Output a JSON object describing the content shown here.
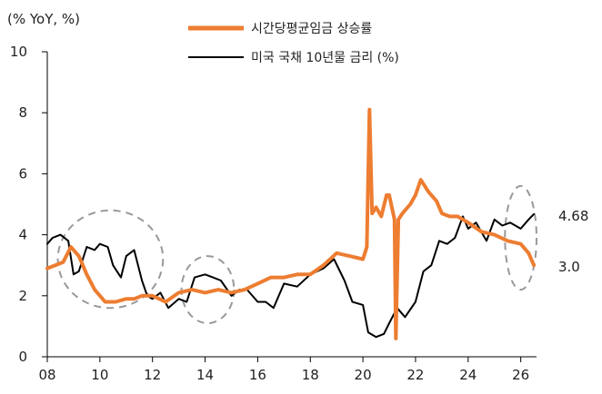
{
  "chart_data": {
    "type": "line",
    "unit_label": "(% YoY, %)",
    "xlim": [
      2008,
      2026.6
    ],
    "ylim": [
      0,
      10
    ],
    "x_ticks": [
      {
        "value": 2008,
        "label": "08"
      },
      {
        "value": 2010,
        "label": "10"
      },
      {
        "value": 2012,
        "label": "12"
      },
      {
        "value": 2014,
        "label": "14"
      },
      {
        "value": 2016,
        "label": "16"
      },
      {
        "value": 2018,
        "label": "18"
      },
      {
        "value": 2020,
        "label": "20"
      },
      {
        "value": 2022,
        "label": "22"
      },
      {
        "value": 2024,
        "label": "24"
      },
      {
        "value": 2026,
        "label": "26"
      }
    ],
    "y_ticks": [
      {
        "value": 0,
        "label": "0"
      },
      {
        "value": 2,
        "label": "2"
      },
      {
        "value": 4,
        "label": "4"
      },
      {
        "value": 6,
        "label": "6"
      },
      {
        "value": 8,
        "label": "8"
      },
      {
        "value": 10,
        "label": "10"
      }
    ],
    "legend_position": "top-center",
    "series": [
      {
        "name": "시간당평균임금 상승률",
        "color": "#ED7D31",
        "end_label": "3.0",
        "x": [
          2008.0,
          2008.3,
          2008.6,
          2008.9,
          2009.2,
          2009.5,
          2009.8,
          2010.2,
          2010.6,
          2011.0,
          2011.3,
          2011.6,
          2012.0,
          2012.5,
          2013.0,
          2013.5,
          2014.0,
          2014.5,
          2015.0,
          2015.5,
          2016.0,
          2016.5,
          2017.0,
          2017.5,
          2018.0,
          2018.5,
          2019.0,
          2019.5,
          2020.0,
          2020.15,
          2020.25,
          2020.35,
          2020.5,
          2020.7,
          2020.9,
          2021.0,
          2021.2,
          2021.25,
          2021.35,
          2021.5,
          2021.8,
          2022.0,
          2022.2,
          2022.5,
          2022.8,
          2023.0,
          2023.3,
          2023.6,
          2024.0,
          2024.5,
          2025.0,
          2025.5,
          2026.0,
          2026.3,
          2026.5
        ],
        "values": [
          2.9,
          3.0,
          3.1,
          3.6,
          3.3,
          2.7,
          2.2,
          1.8,
          1.8,
          1.9,
          1.9,
          2.0,
          2.0,
          1.8,
          2.1,
          2.2,
          2.1,
          2.2,
          2.1,
          2.2,
          2.4,
          2.6,
          2.6,
          2.7,
          2.7,
          3.0,
          3.4,
          3.3,
          3.2,
          3.6,
          8.1,
          4.7,
          4.9,
          4.6,
          5.3,
          5.3,
          4.5,
          0.6,
          4.5,
          4.7,
          5.0,
          5.3,
          5.8,
          5.4,
          5.1,
          4.7,
          4.6,
          4.6,
          4.4,
          4.1,
          4.0,
          3.8,
          3.7,
          3.4,
          3.0
        ]
      },
      {
        "name": "미국 국채 10년물 금리 (%)",
        "color": "#000000",
        "end_label": "4.68",
        "x": [
          2008.0,
          2008.2,
          2008.5,
          2008.8,
          2009.0,
          2009.2,
          2009.5,
          2009.8,
          2010.0,
          2010.3,
          2010.5,
          2010.8,
          2011.0,
          2011.3,
          2011.6,
          2011.8,
          2012.0,
          2012.3,
          2012.6,
          2013.0,
          2013.3,
          2013.6,
          2014.0,
          2014.3,
          2014.6,
          2015.0,
          2015.3,
          2015.6,
          2016.0,
          2016.3,
          2016.6,
          2017.0,
          2017.5,
          2018.0,
          2018.5,
          2018.9,
          2019.3,
          2019.6,
          2020.0,
          2020.2,
          2020.5,
          2020.8,
          2021.0,
          2021.3,
          2021.6,
          2022.0,
          2022.3,
          2022.6,
          2022.9,
          2023.2,
          2023.5,
          2023.8,
          2024.0,
          2024.3,
          2024.7,
          2025.0,
          2025.3,
          2025.6,
          2026.0,
          2026.3,
          2026.5
        ],
        "values": [
          3.7,
          3.9,
          4.0,
          3.8,
          2.7,
          2.8,
          3.6,
          3.5,
          3.7,
          3.6,
          3.0,
          2.6,
          3.3,
          3.5,
          2.5,
          2.0,
          1.9,
          2.1,
          1.6,
          1.9,
          1.8,
          2.6,
          2.7,
          2.6,
          2.5,
          2.0,
          2.2,
          2.2,
          1.8,
          1.8,
          1.6,
          2.4,
          2.3,
          2.7,
          2.9,
          3.2,
          2.5,
          1.8,
          1.7,
          0.8,
          0.65,
          0.75,
          1.1,
          1.6,
          1.3,
          1.8,
          2.8,
          3.0,
          3.8,
          3.7,
          3.9,
          4.6,
          4.2,
          4.4,
          3.8,
          4.5,
          4.3,
          4.4,
          4.2,
          4.5,
          4.68
        ]
      }
    ],
    "highlight_circles": [
      {
        "x_center": 2010.4,
        "y_center": 3.2,
        "x_radius": 2.0,
        "y_radius": 1.6
      },
      {
        "x_center": 2014.1,
        "y_center": 2.2,
        "x_radius": 1.0,
        "y_radius": 1.1
      },
      {
        "x_center": 2026.0,
        "y_center": 3.9,
        "x_radius": 0.6,
        "y_radius": 1.7
      }
    ]
  }
}
